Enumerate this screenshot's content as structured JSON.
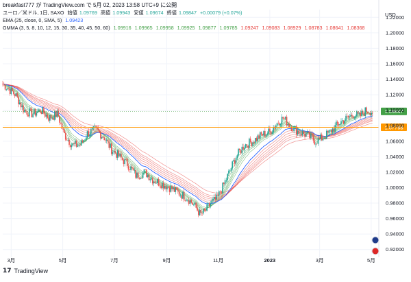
{
  "caption": "breakfast777 が TradingView.com で 5月 02, 2023 13:58 UTC+9 に公開",
  "legend": {
    "symbol_line": {
      "symbol": "ユーロ／米ドル, 1日, SAXO",
      "open_label": "始値",
      "open_value": "1.09769",
      "high_label": "高値",
      "high_value": "1.09943",
      "low_label": "安値",
      "low_value": "1.09674",
      "close_label": "終値",
      "close_value": "1.09847",
      "change": "+0.00079 (+0.07%)"
    },
    "ema_line": {
      "label": "EMA (25, close, 0, SMA, 5)",
      "value": "1.09423"
    },
    "gmma_line": {
      "label": "GMMA (3, 5, 8, 10, 12, 15, 30, 35, 40, 45, 50, 60)",
      "values": [
        "1.09916",
        "1.09965",
        "1.09958",
        "1.09925",
        "1.09877",
        "1.09785",
        "1.09247",
        "1.09083",
        "1.08929",
        "1.08783",
        "1.08641",
        "1.08368"
      ]
    }
  },
  "brand": "TradingView",
  "colors": {
    "up": "#26a69a",
    "down": "#ef5350",
    "ema": "#2962ff",
    "short_gmma": "#43a047",
    "long_gmma": "#e53935",
    "hline": "#ff9800",
    "last_price": "#43a047"
  },
  "chart_data": {
    "type": "candlestick",
    "title": "ユーロ／米ドル, 1日, SAXO",
    "y_axis_title": "USD",
    "ylim": [
      0.91,
      1.23
    ],
    "y_ticks": [
      "1.22000",
      "1.20000",
      "1.18000",
      "1.16000",
      "1.14000",
      "1.12000",
      "1.10000",
      "1.08000",
      "1.06000",
      "1.04000",
      "1.02000",
      "1.00000",
      "0.98000",
      "0.96000",
      "0.94000",
      "0.92000"
    ],
    "x_ticks": [
      "3月",
      "5月",
      "7月",
      "9月",
      "11月",
      "2023",
      "3月",
      "5月"
    ],
    "x_tick_days": [
      0,
      61,
      122,
      184,
      245,
      306,
      365,
      426
    ],
    "last_price_label": "1.09847",
    "horizontal_line": {
      "value": 1.07798,
      "label": "1.07798"
    },
    "close_anchors": [
      [
        -10,
        1.134
      ],
      [
        5,
        1.12
      ],
      [
        15,
        1.1
      ],
      [
        25,
        1.095
      ],
      [
        35,
        1.1
      ],
      [
        45,
        1.09
      ],
      [
        55,
        1.095
      ],
      [
        62,
        1.07
      ],
      [
        72,
        1.055
      ],
      [
        82,
        1.055
      ],
      [
        90,
        1.07
      ],
      [
        100,
        1.075
      ],
      [
        110,
        1.065
      ],
      [
        118,
        1.05
      ],
      [
        128,
        1.04
      ],
      [
        138,
        1.03
      ],
      [
        148,
        1.015
      ],
      [
        158,
        1.02
      ],
      [
        168,
        1.01
      ],
      [
        178,
        1.005
      ],
      [
        188,
        1.0
      ],
      [
        195,
        0.995
      ],
      [
        203,
        0.99
      ],
      [
        210,
        0.985
      ],
      [
        218,
        0.975
      ],
      [
        224,
        0.965
      ],
      [
        230,
        0.97
      ],
      [
        236,
        0.98
      ],
      [
        243,
        0.985
      ],
      [
        250,
        1.0
      ],
      [
        258,
        1.02
      ],
      [
        266,
        1.04
      ],
      [
        276,
        1.055
      ],
      [
        286,
        1.06
      ],
      [
        296,
        1.068
      ],
      [
        306,
        1.072
      ],
      [
        316,
        1.085
      ],
      [
        322,
        1.09
      ],
      [
        330,
        1.08
      ],
      [
        340,
        1.072
      ],
      [
        350,
        1.068
      ],
      [
        360,
        1.06
      ],
      [
        370,
        1.065
      ],
      [
        380,
        1.075
      ],
      [
        390,
        1.085
      ],
      [
        398,
        1.09
      ],
      [
        405,
        1.095
      ],
      [
        412,
        1.092
      ],
      [
        420,
        1.1
      ],
      [
        428,
        1.098
      ]
    ]
  }
}
